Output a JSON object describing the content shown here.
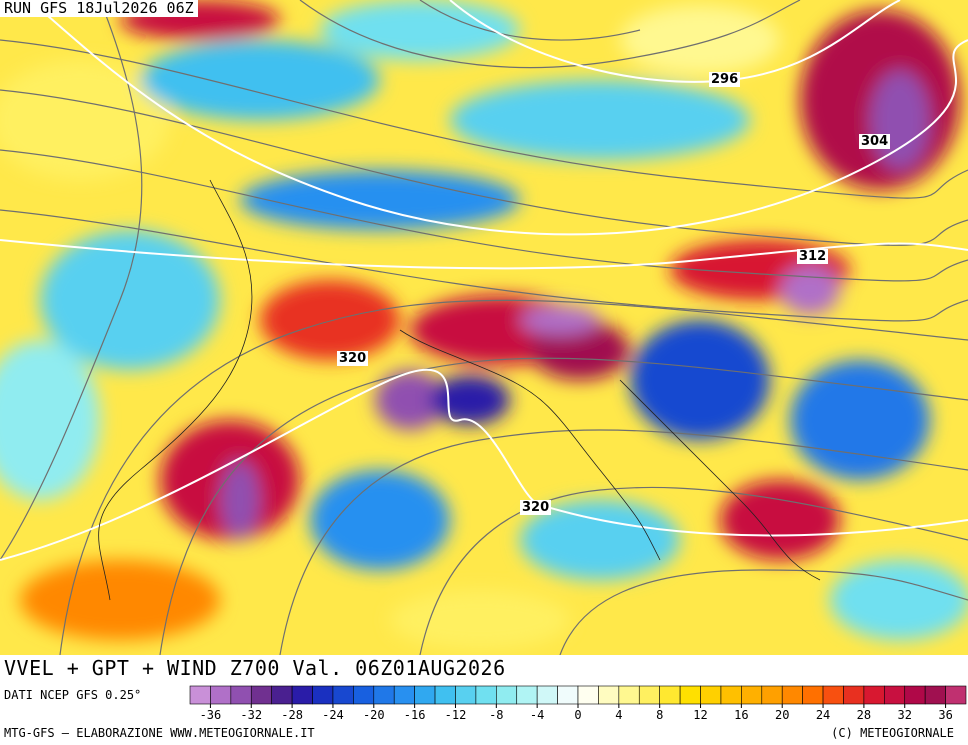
{
  "header": {
    "run": "RUN GFS 18Jul2026 06Z"
  },
  "contour_labels": [
    "296",
    "304",
    "312",
    "320",
    "320"
  ],
  "title": "VVEL + GPT + WIND Z700 Val. 06Z01AUG2026",
  "source": "DATI NCEP GFS 0.25°",
  "colorbar": {
    "range": [
      -38,
      38
    ],
    "ticks": [
      -36,
      -32,
      -28,
      -24,
      -20,
      -16,
      -12,
      -8,
      -4,
      0,
      4,
      8,
      12,
      16,
      20,
      24,
      28,
      32,
      36
    ],
    "colors": [
      "#c990d8",
      "#b070c8",
      "#9050b0",
      "#703090",
      "#4a2090",
      "#2a1ca8",
      "#1a30c0",
      "#1848d0",
      "#1860e0",
      "#2078e8",
      "#2890f0",
      "#30a8f0",
      "#40c0f0",
      "#58d0f0",
      "#70e0f0",
      "#90ecf0",
      "#b0f4f4",
      "#d0f8f8",
      "#f0fcfc",
      "#fffff0",
      "#fffcc0",
      "#fff890",
      "#fff060",
      "#ffe830",
      "#ffe000",
      "#ffd000",
      "#ffc000",
      "#ffb000",
      "#ffa000",
      "#ff8800",
      "#ff7000",
      "#f85010",
      "#e83020",
      "#d81830",
      "#c81040",
      "#b00848",
      "#a01050",
      "#c03070"
    ]
  },
  "footer": {
    "left": "MTG-GFS — ELABORAZIONE WWW.METEOGIORNALE.IT",
    "right": "(C) METEOGIORNALE"
  }
}
